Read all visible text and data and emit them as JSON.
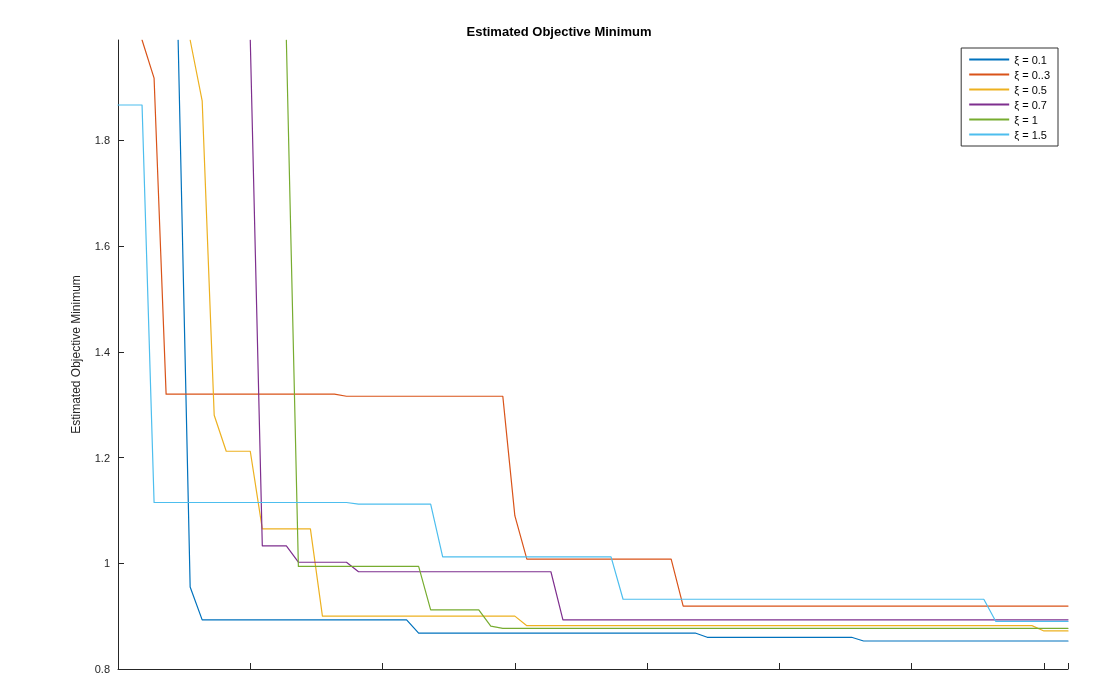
{
  "chart_data": {
    "type": "line",
    "title": "Estimated Objective Minimum",
    "ylabel": "Estimated Objective Minimum",
    "categories": [
      null,
      null,
      null,
      null,
      null,
      null,
      null,
      null,
      null,
      null,
      null,
      null,
      null,
      null,
      null,
      null,
      null,
      null,
      null,
      null,
      null,
      null,
      null,
      null,
      null,
      null,
      null,
      null,
      null,
      null,
      null,
      null,
      null,
      null,
      null,
      null,
      null,
      null,
      null,
      null,
      null,
      null,
      null,
      null,
      null,
      null,
      null,
      null,
      null,
      null,
      null,
      null,
      null,
      null,
      null,
      null,
      null,
      null,
      null,
      null,
      null,
      null,
      null,
      null,
      null,
      null,
      null,
      null,
      null,
      null,
      null,
      null,
      null,
      null,
      null,
      null,
      null,
      null,
      null,
      null
    ],
    "series": [
      {
        "name": "ξ = 0.1",
        "color": "#0072bd",
        "values": [
          null,
          null,
          null,
          null,
          null,
          1.99,
          0.955,
          0.893,
          0.893,
          0.893,
          0.893,
          0.893,
          0.893,
          0.893,
          0.893,
          0.893,
          0.893,
          0.893,
          0.893,
          0.893,
          0.893,
          0.893,
          0.893,
          0.893,
          0.893,
          0.868,
          0.868,
          0.868,
          0.868,
          0.868,
          0.868,
          0.868,
          0.868,
          0.868,
          0.868,
          0.868,
          0.868,
          0.868,
          0.868,
          0.868,
          0.868,
          0.868,
          0.868,
          0.868,
          0.868,
          0.868,
          0.868,
          0.868,
          0.868,
          0.86,
          0.86,
          0.86,
          0.86,
          0.86,
          0.86,
          0.86,
          0.86,
          0.86,
          0.86,
          0.86,
          0.86,
          0.86,
          0.853,
          0.853,
          0.853,
          0.853,
          0.853,
          0.853,
          0.853,
          0.853,
          0.853,
          0.853,
          0.853,
          0.853,
          0.853,
          0.853,
          0.853,
          0.853,
          0.853,
          0.853
        ]
      },
      {
        "name": "ξ = 0..3",
        "color": "#d95319",
        "values": [
          null,
          null,
          1.99,
          1.918,
          1.32,
          1.32,
          1.32,
          1.32,
          1.32,
          1.32,
          1.32,
          1.32,
          1.32,
          1.32,
          1.32,
          1.32,
          1.32,
          1.32,
          1.32,
          1.316,
          1.316,
          1.316,
          1.316,
          1.316,
          1.316,
          1.316,
          1.316,
          1.316,
          1.316,
          1.316,
          1.316,
          1.316,
          1.316,
          1.09,
          1.008,
          1.008,
          1.008,
          1.008,
          1.008,
          1.008,
          1.008,
          1.008,
          1.008,
          1.008,
          1.008,
          1.008,
          1.008,
          0.919,
          0.919,
          0.919,
          0.919,
          0.919,
          0.919,
          0.919,
          0.919,
          0.919,
          0.919,
          0.919,
          0.919,
          0.919,
          0.919,
          0.919,
          0.919,
          0.919,
          0.919,
          0.919,
          0.919,
          0.919,
          0.919,
          0.919,
          0.919,
          0.919,
          0.919,
          0.919,
          0.919,
          0.919,
          0.919,
          0.919,
          0.919,
          0.919
        ]
      },
      {
        "name": "ξ = 0.5",
        "color": "#edb120",
        "values": [
          null,
          null,
          null,
          null,
          null,
          null,
          1.99,
          1.875,
          1.28,
          1.212,
          1.212,
          1.212,
          1.065,
          1.065,
          1.065,
          1.065,
          1.065,
          0.9,
          0.9,
          0.9,
          0.9,
          0.9,
          0.9,
          0.9,
          0.9,
          0.9,
          0.9,
          0.9,
          0.9,
          0.9,
          0.9,
          0.9,
          0.9,
          0.9,
          0.882,
          0.882,
          0.882,
          0.882,
          0.882,
          0.882,
          0.882,
          0.882,
          0.882,
          0.882,
          0.882,
          0.882,
          0.882,
          0.882,
          0.882,
          0.882,
          0.882,
          0.882,
          0.882,
          0.882,
          0.882,
          0.882,
          0.882,
          0.882,
          0.882,
          0.882,
          0.882,
          0.882,
          0.882,
          0.882,
          0.882,
          0.882,
          0.882,
          0.882,
          0.882,
          0.882,
          0.882,
          0.882,
          0.882,
          0.882,
          0.882,
          0.882,
          0.882,
          0.872,
          0.872,
          0.872
        ]
      },
      {
        "name": "ξ = 0.7",
        "color": "#7e2f8e",
        "values": [
          null,
          null,
          null,
          null,
          null,
          null,
          null,
          null,
          null,
          null,
          null,
          1.99,
          1.033,
          1.033,
          1.033,
          1.002,
          1.002,
          1.002,
          1.002,
          1.002,
          0.984,
          0.984,
          0.984,
          0.984,
          0.984,
          0.984,
          0.984,
          0.984,
          0.984,
          0.984,
          0.984,
          0.984,
          0.984,
          0.984,
          0.984,
          0.984,
          0.984,
          0.893,
          0.893,
          0.893,
          0.893,
          0.893,
          0.893,
          0.893,
          0.893,
          0.893,
          0.893,
          0.893,
          0.893,
          0.893,
          0.893,
          0.893,
          0.893,
          0.893,
          0.893,
          0.893,
          0.893,
          0.893,
          0.893,
          0.893,
          0.893,
          0.893,
          0.893,
          0.893,
          0.893,
          0.893,
          0.893,
          0.893,
          0.893,
          0.893,
          0.893,
          0.893,
          0.893,
          0.893,
          0.893,
          0.893,
          0.893,
          0.893,
          0.893,
          0.893
        ]
      },
      {
        "name": "ξ = 1",
        "color": "#77ac30",
        "values": [
          null,
          null,
          null,
          null,
          null,
          null,
          null,
          null,
          null,
          null,
          null,
          null,
          null,
          null,
          1.99,
          0.994,
          0.994,
          0.994,
          0.994,
          0.994,
          0.994,
          0.994,
          0.994,
          0.994,
          0.994,
          0.994,
          0.912,
          0.912,
          0.912,
          0.912,
          0.912,
          0.881,
          0.877,
          0.877,
          0.877,
          0.877,
          0.877,
          0.877,
          0.877,
          0.877,
          0.877,
          0.877,
          0.877,
          0.877,
          0.877,
          0.877,
          0.877,
          0.877,
          0.877,
          0.877,
          0.877,
          0.877,
          0.877,
          0.877,
          0.877,
          0.877,
          0.877,
          0.877,
          0.877,
          0.877,
          0.877,
          0.877,
          0.877,
          0.877,
          0.877,
          0.877,
          0.877,
          0.877,
          0.877,
          0.877,
          0.877,
          0.877,
          0.877,
          0.877,
          0.877,
          0.877,
          0.877,
          0.877,
          0.877,
          0.877
        ]
      },
      {
        "name": "ξ = 1.5",
        "color": "#4dbeee",
        "values": [
          1.867,
          1.867,
          1.867,
          1.115,
          1.115,
          1.115,
          1.115,
          1.115,
          1.115,
          1.115,
          1.115,
          1.115,
          1.115,
          1.115,
          1.115,
          1.115,
          1.115,
          1.115,
          1.115,
          1.115,
          1.112,
          1.112,
          1.112,
          1.112,
          1.112,
          1.112,
          1.112,
          1.012,
          1.012,
          1.012,
          1.012,
          1.012,
          1.012,
          1.012,
          1.012,
          1.012,
          1.012,
          1.012,
          1.012,
          1.012,
          1.012,
          1.012,
          0.932,
          0.932,
          0.932,
          0.932,
          0.932,
          0.932,
          0.932,
          0.932,
          0.932,
          0.932,
          0.932,
          0.932,
          0.932,
          0.932,
          0.932,
          0.932,
          0.932,
          0.932,
          0.932,
          0.932,
          0.932,
          0.932,
          0.932,
          0.932,
          0.932,
          0.932,
          0.932,
          0.932,
          0.932,
          0.932,
          0.932,
          0.89,
          0.89,
          0.89,
          0.89,
          0.89,
          0.89,
          0.89
        ]
      }
    ],
    "ylim": [
      0.8,
      1.99
    ],
    "yticks": [
      0.8,
      1,
      1.2,
      1.4,
      1.6,
      1.8
    ],
    "tick_labels": "y",
    "grid": false,
    "legend": "top right",
    "marker": "none",
    "line_style": "solid"
  }
}
